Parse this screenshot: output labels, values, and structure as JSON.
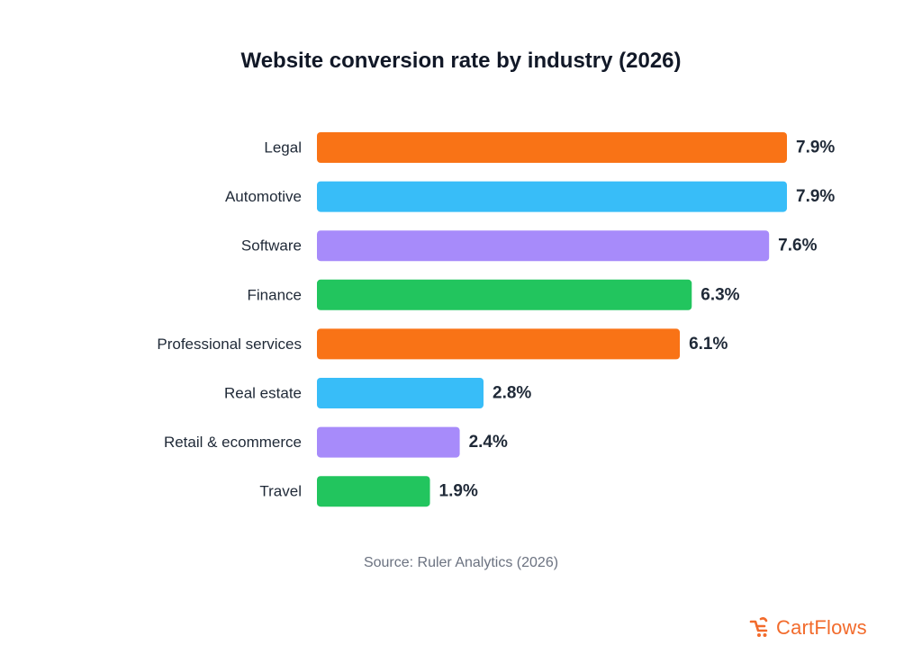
{
  "chart_data": {
    "type": "bar",
    "orientation": "horizontal",
    "title": "Website conversion rate by industry (2026)",
    "categories": [
      "Legal",
      "Automotive",
      "Software",
      "Finance",
      "Professional services",
      "Real estate",
      "Retail & ecommerce",
      "Travel"
    ],
    "values": [
      7.9,
      7.9,
      7.6,
      6.3,
      6.1,
      2.8,
      2.4,
      1.9
    ],
    "value_labels": [
      "7.9%",
      "7.9%",
      "7.6%",
      "6.3%",
      "6.1%",
      "2.8%",
      "2.4%",
      "1.9%"
    ],
    "unit": "%",
    "colors": [
      "#f97316",
      "#38bdf8",
      "#a78bfa",
      "#22c55e",
      "#f97316",
      "#38bdf8",
      "#a78bfa",
      "#22c55e"
    ],
    "xlim": [
      0,
      7.9
    ],
    "grid": false,
    "legend": "none"
  },
  "source": "Source: Ruler Analytics (2026)",
  "brand": {
    "name": "CartFlows",
    "icon": "cartflows-logo-icon",
    "color": "#f26b2c"
  }
}
